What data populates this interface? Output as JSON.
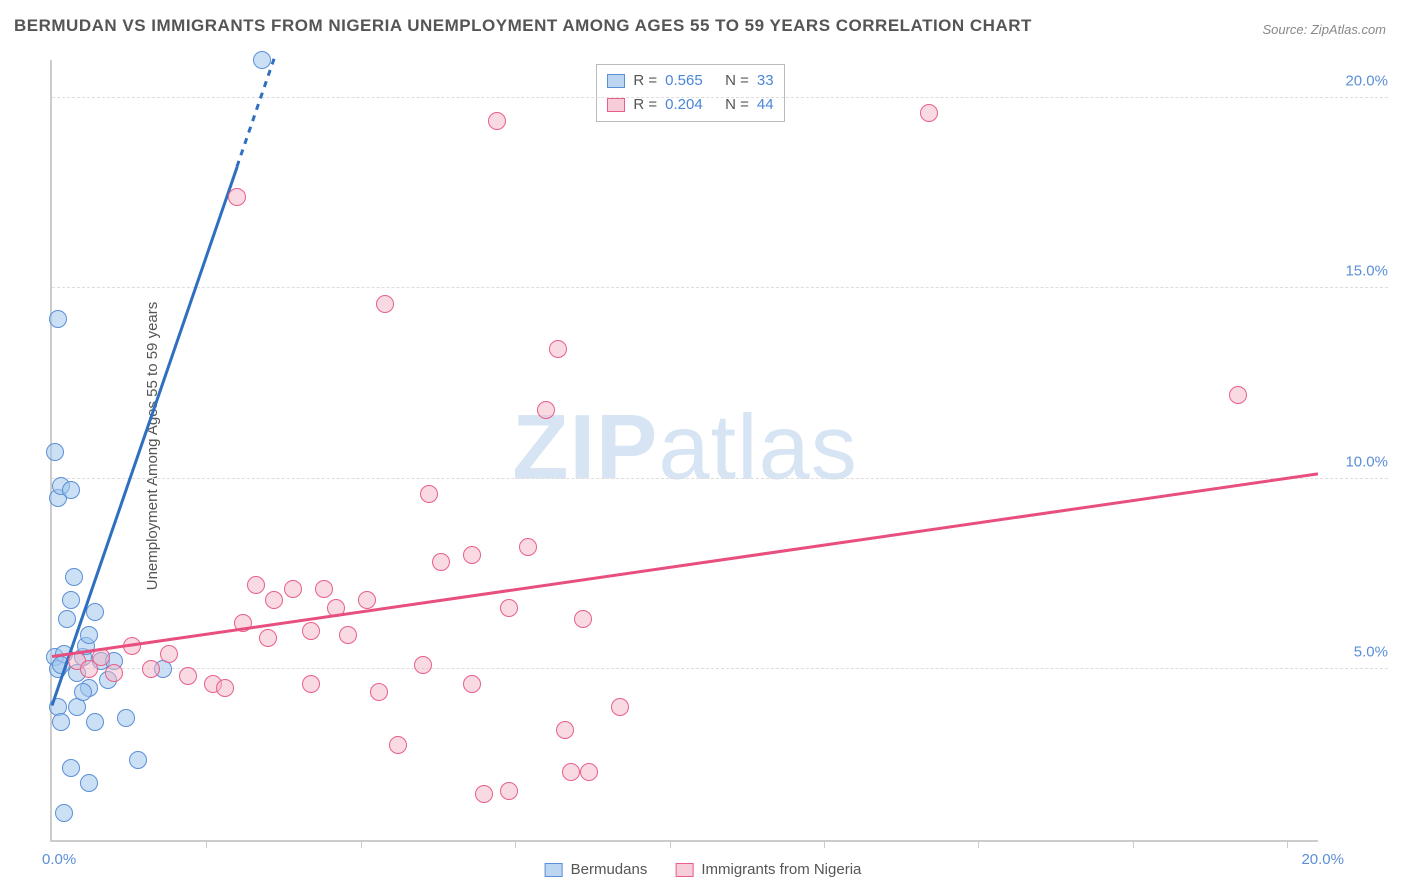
{
  "title": "BERMUDAN VS IMMIGRANTS FROM NIGERIA UNEMPLOYMENT AMONG AGES 55 TO 59 YEARS CORRELATION CHART",
  "source": "Source: ZipAtlas.com",
  "ylabel": "Unemployment Among Ages 55 to 59 years",
  "watermark_text": "ZIPatlas",
  "watermark_bold_chars": 3,
  "watermark_color": "#d7e4f3",
  "x_range": [
    0,
    20.5
  ],
  "y_range": [
    0.5,
    21.0
  ],
  "y_ticks": [
    5.0,
    10.0,
    15.0,
    20.0
  ],
  "y_tick_labels": [
    "5.0%",
    "10.0%",
    "15.0%",
    "20.0%"
  ],
  "x_ticks_minor": [
    2.5,
    5.0,
    7.5,
    10.0,
    12.5,
    15.0,
    17.5,
    20.0
  ],
  "x_origin_label": "0.0%",
  "x_end_label": "20.0%",
  "axis_label_color": "#5b8fd6",
  "grid_color": "#dddddd",
  "legend_top": [
    {
      "swatch_fill": "#bcd5f0",
      "swatch_border": "#5b8fd6",
      "r_label": "R =",
      "r_value": "0.565",
      "n_label": "N =",
      "n_value": "33",
      "value_color": "#4a86d8"
    },
    {
      "swatch_fill": "#f6cdd8",
      "swatch_border": "#e85f8a",
      "r_label": "R =",
      "r_value": "0.204",
      "n_label": "N =",
      "n_value": "44",
      "value_color": "#4a86d8"
    }
  ],
  "legend_bottom": [
    {
      "swatch_fill": "#bcd5f0",
      "swatch_border": "#5b8fd6",
      "label": "Bermudans"
    },
    {
      "swatch_fill": "#f6cdd8",
      "swatch_border": "#e85f8a",
      "label": "Immigrants from Nigeria"
    }
  ],
  "series": [
    {
      "name": "Bermudans",
      "marker_fill": "rgba(160,198,236,0.55)",
      "marker_stroke": "#5b8fd6",
      "marker_radius": 9,
      "trend_color": "#2f6fc0",
      "trend_width": 3,
      "trend": {
        "x1": 0.0,
        "y1": 4.0,
        "x2": 3.6,
        "y2": 21.0,
        "dash_after_x": 3.0
      },
      "points": [
        [
          0.05,
          5.3
        ],
        [
          0.1,
          5.0
        ],
        [
          0.1,
          4.0
        ],
        [
          0.15,
          3.6
        ],
        [
          0.2,
          1.2
        ],
        [
          0.3,
          2.4
        ],
        [
          0.2,
          5.4
        ],
        [
          0.25,
          6.3
        ],
        [
          0.3,
          6.8
        ],
        [
          0.35,
          7.4
        ],
        [
          0.15,
          5.1
        ],
        [
          0.5,
          5.3
        ],
        [
          0.4,
          4.9
        ],
        [
          0.55,
          5.6
        ],
        [
          0.1,
          9.5
        ],
        [
          0.15,
          9.8
        ],
        [
          0.3,
          9.7
        ],
        [
          0.05,
          10.7
        ],
        [
          0.1,
          14.2
        ],
        [
          0.4,
          4.0
        ],
        [
          0.6,
          4.5
        ],
        [
          0.7,
          3.6
        ],
        [
          0.8,
          5.2
        ],
        [
          0.5,
          4.4
        ],
        [
          0.6,
          5.9
        ],
        [
          0.7,
          6.5
        ],
        [
          0.9,
          4.7
        ],
        [
          1.0,
          5.2
        ],
        [
          1.2,
          3.7
        ],
        [
          1.4,
          2.6
        ],
        [
          0.6,
          2.0
        ],
        [
          1.8,
          5.0
        ],
        [
          3.4,
          21.0
        ]
      ]
    },
    {
      "name": "Immigrants from Nigeria",
      "marker_fill": "rgba(244,182,199,0.5)",
      "marker_stroke": "#e85f8a",
      "marker_radius": 9,
      "trend_color": "#e84f7f",
      "trend_width": 2.5,
      "trend": {
        "x1": 0.0,
        "y1": 5.3,
        "x2": 20.5,
        "y2": 10.1
      },
      "points": [
        [
          0.4,
          5.2
        ],
        [
          0.6,
          5.0
        ],
        [
          0.8,
          5.3
        ],
        [
          1.0,
          4.9
        ],
        [
          1.3,
          5.6
        ],
        [
          1.6,
          5.0
        ],
        [
          1.9,
          5.4
        ],
        [
          2.2,
          4.8
        ],
        [
          2.6,
          4.6
        ],
        [
          3.0,
          17.4
        ],
        [
          3.1,
          6.2
        ],
        [
          2.8,
          4.5
        ],
        [
          3.3,
          7.2
        ],
        [
          3.5,
          5.8
        ],
        [
          3.6,
          6.8
        ],
        [
          3.9,
          7.1
        ],
        [
          4.2,
          6.0
        ],
        [
          4.2,
          4.6
        ],
        [
          4.4,
          7.1
        ],
        [
          4.6,
          6.6
        ],
        [
          4.8,
          5.9
        ],
        [
          5.1,
          6.8
        ],
        [
          5.4,
          14.6
        ],
        [
          5.3,
          4.4
        ],
        [
          5.6,
          3.0
        ],
        [
          6.0,
          5.1
        ],
        [
          6.1,
          9.6
        ],
        [
          6.3,
          7.8
        ],
        [
          6.8,
          8.0
        ],
        [
          6.8,
          4.6
        ],
        [
          7.0,
          1.7
        ],
        [
          7.2,
          19.4
        ],
        [
          7.4,
          6.6
        ],
        [
          7.4,
          1.8
        ],
        [
          7.7,
          8.2
        ],
        [
          8.0,
          11.8
        ],
        [
          8.3,
          3.4
        ],
        [
          8.4,
          2.3
        ],
        [
          8.2,
          13.4
        ],
        [
          8.6,
          6.3
        ],
        [
          8.7,
          2.3
        ],
        [
          9.2,
          4.0
        ],
        [
          14.2,
          19.6
        ],
        [
          19.2,
          12.2
        ]
      ]
    }
  ]
}
